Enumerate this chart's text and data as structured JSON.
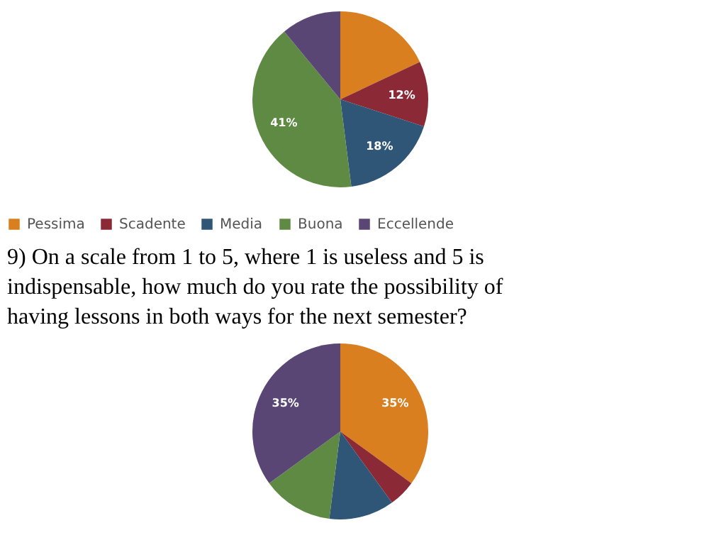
{
  "chart_data": [
    {
      "type": "pie",
      "categories": [
        "Pessima",
        "Scadente",
        "Media",
        "Buona",
        "Eccellende"
      ],
      "values": [
        18,
        12,
        18,
        41,
        11
      ],
      "colors": [
        "#d97f20",
        "#8b2a36",
        "#2f5677",
        "#5e8a44",
        "#5a4675"
      ],
      "value_labels": [
        null,
        "12%",
        "18%",
        "41%",
        null
      ],
      "legend": "bottom"
    },
    {
      "type": "pie",
      "title": "9) On a scale from 1 to 5, where 1 is useless and 5 is indispensable, how much do you rate the possibility of having lessons in both ways for the next semester?",
      "categories": [
        null,
        null,
        null,
        null,
        null
      ],
      "values": [
        35,
        5,
        12,
        13,
        35
      ],
      "colors": [
        "#d97f20",
        "#8b2a36",
        "#2f5677",
        "#5e8a44",
        "#5a4675"
      ],
      "value_labels": [
        "35%",
        null,
        null,
        null,
        "35%"
      ],
      "legend": false
    }
  ]
}
